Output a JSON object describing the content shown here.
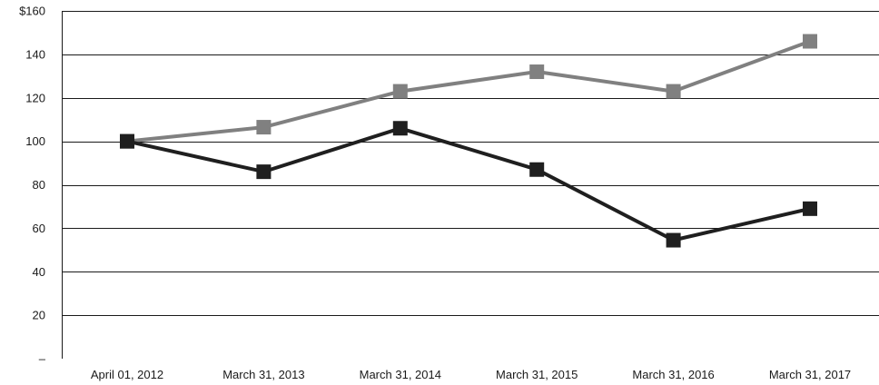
{
  "chart_data": {
    "type": "line",
    "title": "",
    "xlabel": "",
    "ylabel": "",
    "categories": [
      "April 01, 2012",
      "March 31, 2013",
      "March 31, 2014",
      "March 31, 2015",
      "March 31, 2016",
      "March 31, 2017"
    ],
    "y_ticks": [
      0,
      20,
      40,
      60,
      80,
      100,
      120,
      140,
      160
    ],
    "y_tick_labels": [
      "–",
      "20",
      "40",
      "60",
      "80",
      "100",
      "120",
      "140",
      "$160"
    ],
    "ylim": [
      0,
      160
    ],
    "grid": true,
    "legend": "none",
    "series": [
      {
        "color": "#808080",
        "values": [
          100,
          106.5,
          123,
          132,
          123,
          146
        ]
      },
      {
        "color": "#1f1f1f",
        "values": [
          100,
          86,
          106,
          87,
          54.5,
          69
        ]
      }
    ]
  }
}
